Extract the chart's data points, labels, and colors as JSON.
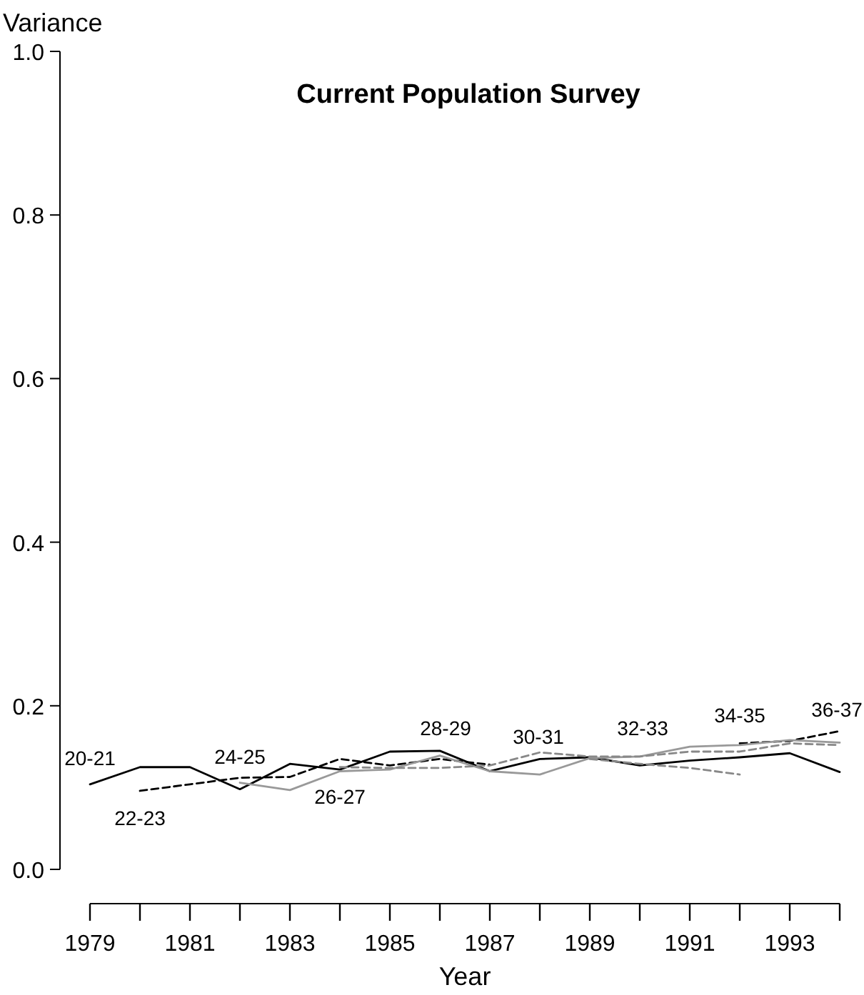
{
  "chart_data": {
    "type": "line",
    "title": "Current Population Survey",
    "xlabel": "Year",
    "ylabel": "Variance",
    "x": [
      1979,
      1980,
      1981,
      1982,
      1983,
      1984,
      1985,
      1986,
      1987,
      1988,
      1989,
      1990,
      1991,
      1992,
      1993,
      1994
    ],
    "xlim": [
      1979,
      1994
    ],
    "xticks": [
      1979,
      1981,
      1983,
      1985,
      1987,
      1989,
      1991,
      1993
    ],
    "ylim": [
      0,
      1
    ],
    "yticks": [
      "0.0",
      0.2,
      0.4,
      0.6,
      0.8,
      "1.0"
    ],
    "marker": "none",
    "series": [
      {
        "color": "#000000",
        "line_style": "solid",
        "values": [
          0.104,
          0.125,
          0.125,
          0.098,
          0.129,
          0.122,
          0.144,
          0.145,
          0.12,
          0.135,
          0.137,
          0.127,
          0.133,
          0.137,
          0.142,
          0.119
        ]
      },
      {
        "color": "#000000",
        "line_style": "dashed",
        "values": [
          null,
          0.096,
          0.104,
          0.112,
          0.113,
          0.135,
          0.127,
          0.135,
          0.128,
          null,
          null,
          null,
          null,
          0.154,
          0.157,
          0.169
        ]
      },
      {
        "color": "#999999",
        "line_style": "solid",
        "values": [
          null,
          null,
          null,
          0.106,
          0.097,
          0.12,
          0.122,
          0.139,
          0.12,
          0.116,
          0.136,
          0.138,
          0.15,
          0.152,
          0.158,
          0.155
        ]
      },
      {
        "color": "#888888",
        "line_style": "dashed",
        "values": [
          null,
          null,
          null,
          null,
          null,
          0.125,
          0.124,
          0.124,
          0.127,
          0.143,
          0.138,
          0.138,
          0.144,
          0.144,
          0.154,
          0.152
        ]
      },
      {
        "color": "#888888",
        "line_style": "dashed",
        "values": [
          null,
          null,
          null,
          null,
          null,
          null,
          null,
          null,
          null,
          null,
          0.135,
          0.129,
          0.124,
          0.116,
          null,
          null
        ]
      }
    ],
    "annotations": [
      "20-21",
      "22-23",
      "24-25",
      "26-27",
      "28-29",
      "30-31",
      "32-33",
      "34-35",
      "36-37"
    ]
  }
}
